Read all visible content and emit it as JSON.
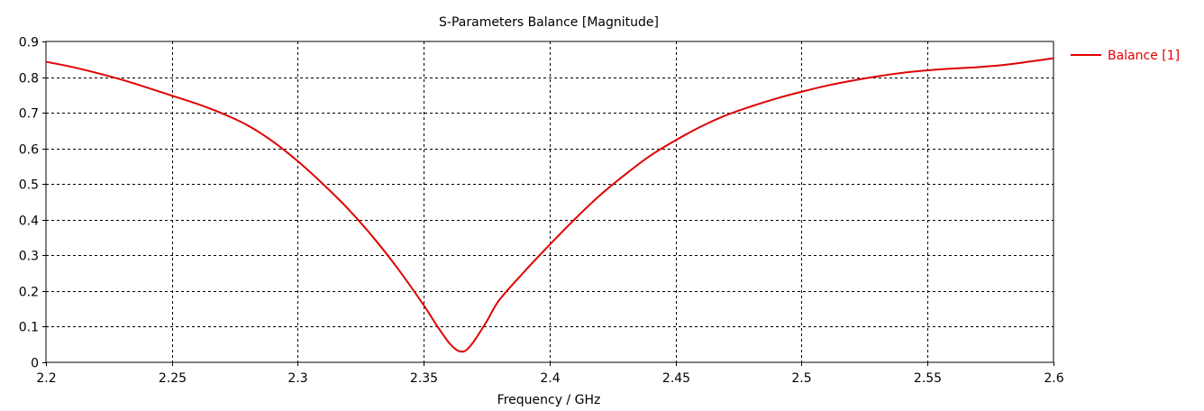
{
  "chart_data": {
    "type": "line",
    "title": "S-Parameters Balance [Magnitude]",
    "xlabel": "Frequency / GHz",
    "ylabel": "",
    "xlim": [
      2.2,
      2.6
    ],
    "ylim": [
      0,
      0.9
    ],
    "xticks": [
      "2.2",
      "2.25",
      "2.3",
      "2.35",
      "2.4",
      "2.45",
      "2.5",
      "2.55",
      "2.6"
    ],
    "yticks": [
      "0",
      "0.1",
      "0.2",
      "0.3",
      "0.4",
      "0.5",
      "0.6",
      "0.7",
      "0.8",
      "0.9"
    ],
    "grid": true,
    "legend_position": "top-right outside",
    "series": [
      {
        "name": "Balance [1]",
        "color": "#e00000",
        "x": [
          2.2,
          2.21,
          2.22,
          2.23,
          2.24,
          2.25,
          2.26,
          2.27,
          2.28,
          2.29,
          2.3,
          2.31,
          2.32,
          2.33,
          2.34,
          2.35,
          2.355,
          2.36,
          2.363,
          2.365,
          2.367,
          2.37,
          2.375,
          2.38,
          2.39,
          2.4,
          2.41,
          2.42,
          2.43,
          2.44,
          2.45,
          2.46,
          2.47,
          2.48,
          2.49,
          2.5,
          2.51,
          2.52,
          2.53,
          2.54,
          2.55,
          2.56,
          2.57,
          2.58,
          2.59,
          2.6
        ],
        "y": [
          0.843,
          0.829,
          0.812,
          0.793,
          0.771,
          0.748,
          0.725,
          0.698,
          0.665,
          0.62,
          0.564,
          0.5,
          0.43,
          0.35,
          0.26,
          0.16,
          0.105,
          0.055,
          0.035,
          0.03,
          0.035,
          0.06,
          0.115,
          0.175,
          0.255,
          0.33,
          0.402,
          0.469,
          0.527,
          0.58,
          0.623,
          0.661,
          0.693,
          0.718,
          0.74,
          0.759,
          0.776,
          0.79,
          0.802,
          0.812,
          0.819,
          0.824,
          0.828,
          0.834,
          0.843,
          0.853
        ]
      }
    ]
  }
}
